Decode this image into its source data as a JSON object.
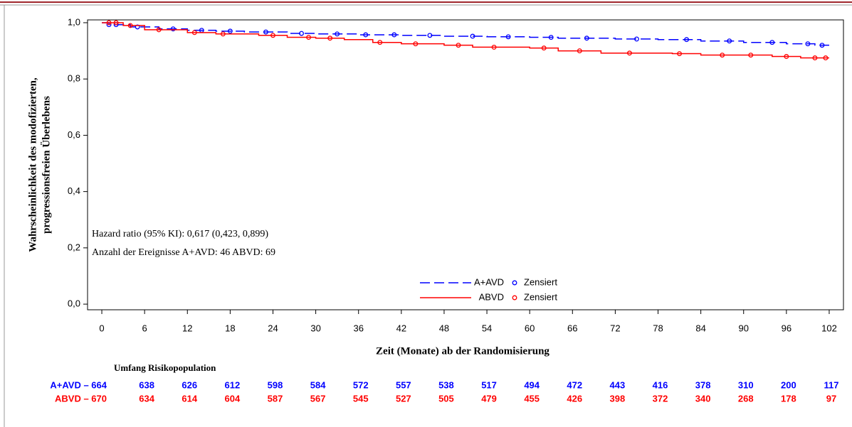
{
  "chart_data": {
    "type": "line",
    "step": true,
    "ylabel": [
      "Wahrscheinlichkeit des modofizierten,",
      "progressionsfreien Überlebens"
    ],
    "xlabel": "Zeit (Monate) ab der Randomisierung",
    "xlim": [
      -2,
      104
    ],
    "ylim": [
      -0.02,
      1.01
    ],
    "xticks": [
      0,
      6,
      12,
      18,
      24,
      30,
      36,
      42,
      48,
      54,
      60,
      66,
      72,
      78,
      84,
      90,
      96,
      102
    ],
    "yticks": [
      {
        "value": 0,
        "label": "0,0"
      },
      {
        "value": 0.2,
        "label": "0,2"
      },
      {
        "value": 0.4,
        "label": "0,4"
      },
      {
        "value": 0.6,
        "label": "0,6"
      },
      {
        "value": 0.8,
        "label": "0,8"
      },
      {
        "value": 1,
        "label": "1,0"
      }
    ],
    "legend": "lower center",
    "annotations": [
      "Hazard ratio (95% KI): 0,617 (0,423, 0,899)",
      "Anzahl der Ereignisse A+AVD: 46 ABVD: 69"
    ],
    "series": [
      {
        "name": "A+AVD",
        "color": "#0000ff",
        "line_style": "dashed",
        "x": [
          0,
          1,
          4,
          8,
          12,
          16,
          20,
          26,
          30,
          36,
          42,
          48,
          54,
          60,
          64,
          72,
          78,
          84,
          90,
          96,
          100,
          102
        ],
        "values": [
          1.0,
          0.993,
          0.985,
          0.978,
          0.973,
          0.97,
          0.967,
          0.962,
          0.96,
          0.957,
          0.955,
          0.952,
          0.95,
          0.948,
          0.945,
          0.942,
          0.94,
          0.935,
          0.93,
          0.925,
          0.92,
          0.92
        ],
        "censored": {
          "name": "Zensiert",
          "x": [
            1,
            2,
            5,
            10,
            14,
            18,
            23,
            28,
            33,
            37,
            41,
            46,
            52,
            57,
            63,
            68,
            75,
            82,
            88,
            94,
            99,
            101
          ],
          "values": [
            0.993,
            0.993,
            0.985,
            0.978,
            0.973,
            0.97,
            0.967,
            0.962,
            0.96,
            0.957,
            0.957,
            0.955,
            0.952,
            0.95,
            0.948,
            0.945,
            0.942,
            0.94,
            0.935,
            0.93,
            0.925,
            0.92
          ]
        }
      },
      {
        "name": "ABVD",
        "color": "#ff0000",
        "line_style": "solid",
        "x": [
          0,
          3,
          6,
          12,
          16,
          22,
          26,
          30,
          34,
          38,
          42,
          48,
          52,
          60,
          64,
          70,
          80,
          84,
          94,
          98,
          102
        ],
        "values": [
          1.0,
          0.99,
          0.975,
          0.965,
          0.96,
          0.955,
          0.948,
          0.945,
          0.94,
          0.93,
          0.925,
          0.92,
          0.913,
          0.91,
          0.9,
          0.892,
          0.89,
          0.885,
          0.88,
          0.875,
          0.875
        ],
        "censored": {
          "name": "Zensiert",
          "x": [
            1,
            2,
            4,
            8,
            13,
            17,
            24,
            29,
            32,
            39,
            44,
            50,
            55,
            62,
            67,
            74,
            81,
            87,
            91,
            96,
            100,
            101.5
          ],
          "values": [
            1.0,
            1.0,
            0.99,
            0.975,
            0.965,
            0.96,
            0.955,
            0.948,
            0.945,
            0.93,
            0.925,
            0.92,
            0.913,
            0.91,
            0.9,
            0.892,
            0.89,
            0.885,
            0.885,
            0.88,
            0.875,
            0.875
          ]
        }
      }
    ],
    "risk_table": {
      "title": "Umfang Risikopopulation",
      "rows": [
        {
          "label": "A+AVD – 664",
          "color": "#0000ff",
          "values": [
            638,
            626,
            612,
            598,
            584,
            572,
            557,
            538,
            517,
            494,
            472,
            443,
            416,
            378,
            310,
            200,
            117
          ]
        },
        {
          "label": "ABVD – 670",
          "color": "#ff0000",
          "values": [
            634,
            614,
            604,
            587,
            567,
            545,
            527,
            505,
            479,
            455,
            426,
            398,
            372,
            340,
            268,
            178,
            97
          ]
        }
      ]
    }
  }
}
